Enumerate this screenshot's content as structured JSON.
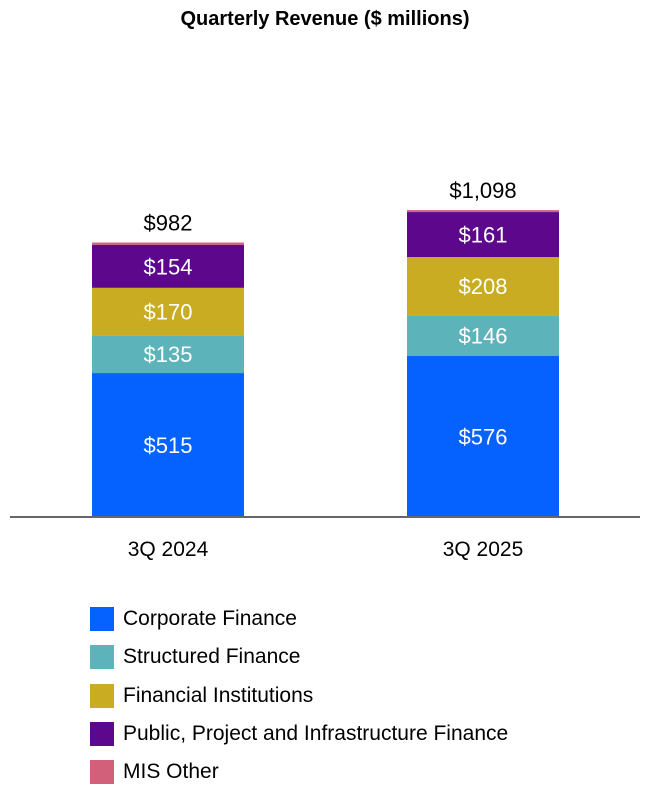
{
  "chart_data": {
    "type": "bar",
    "stacked": true,
    "title": "Quarterly Revenue ($ millions)",
    "xlabel": "",
    "ylabel": "",
    "ylim": [
      0,
      1098
    ],
    "grid": false,
    "legend_position": "bottom",
    "categories": [
      "3Q 2024",
      "3Q 2025"
    ],
    "totals": [
      982,
      1098
    ],
    "total_labels": [
      "$982",
      "$1,098"
    ],
    "series": [
      {
        "name": "Corporate Finance",
        "color": "#0562FF",
        "values": [
          515,
          576
        ],
        "labels": [
          "$515",
          "$576"
        ]
      },
      {
        "name": "Structured Finance",
        "color": "#5DB3BA",
        "values": [
          135,
          146
        ],
        "labels": [
          "$135",
          "$146"
        ]
      },
      {
        "name": "Financial Institutions",
        "color": "#C9AC22",
        "values": [
          170,
          208
        ],
        "labels": [
          "$170",
          "$208"
        ]
      },
      {
        "name": "Public, Project and Infrastructure Finance",
        "color": "#5C078C",
        "values": [
          154,
          161
        ],
        "labels": [
          "$154",
          "$161"
        ]
      },
      {
        "name": "MIS Other",
        "color": "#D2607A",
        "values": [
          8,
          7
        ],
        "labels": [
          "",
          ""
        ]
      }
    ]
  }
}
